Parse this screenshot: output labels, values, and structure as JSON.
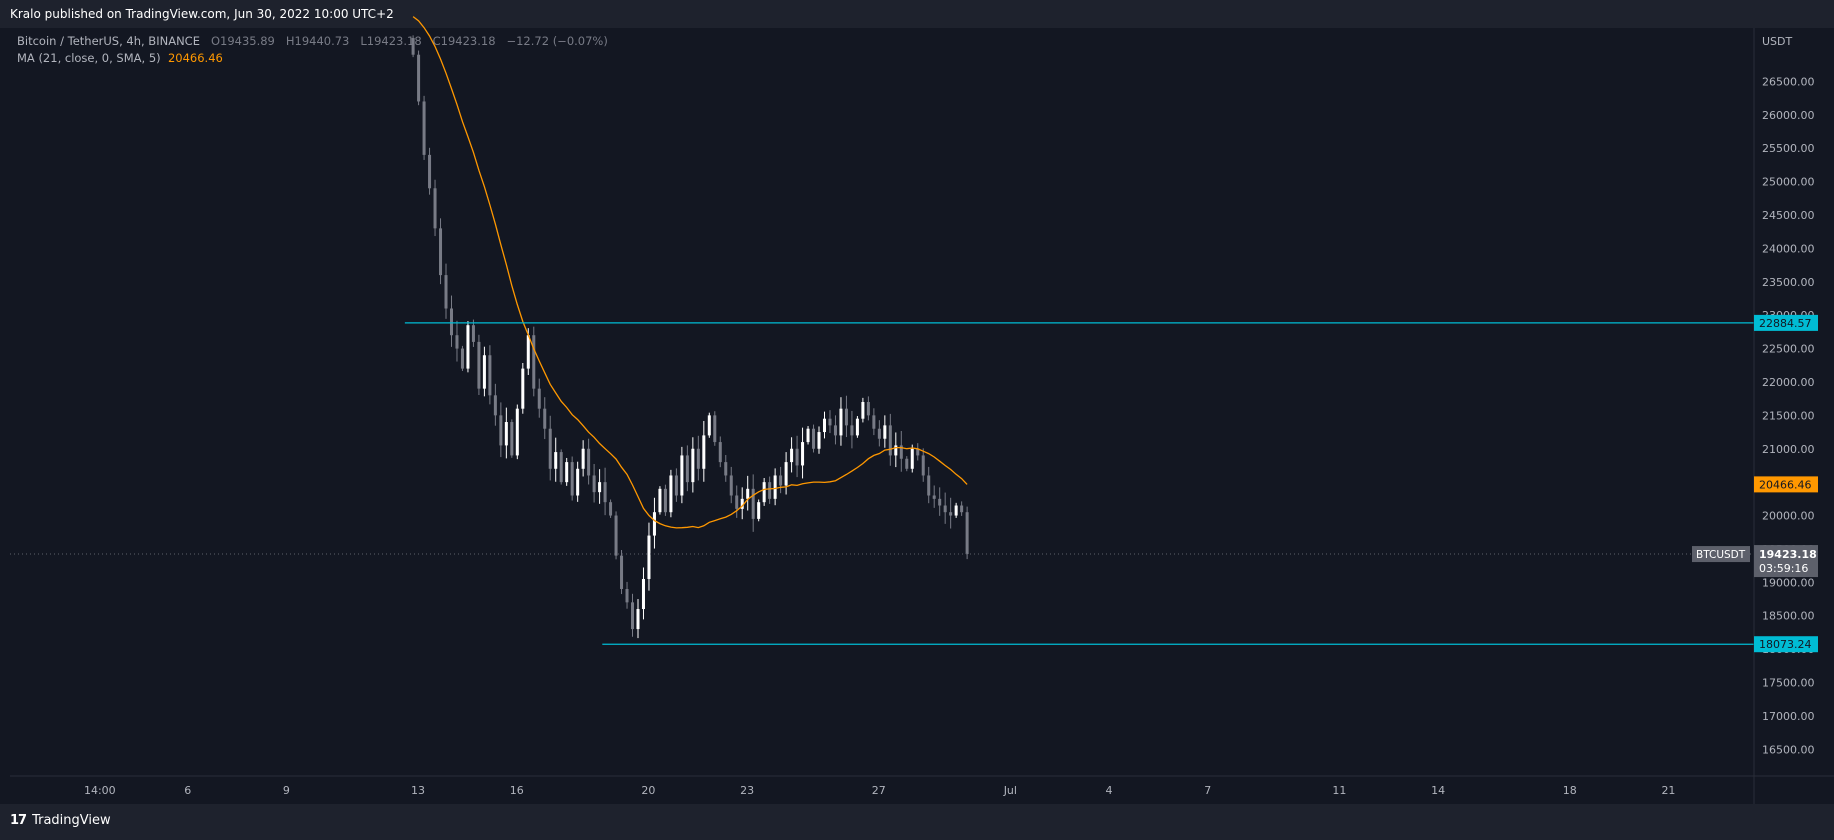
{
  "header": {
    "published_text": "Kralo published on TradingView.com, Jun 30, 2022 10:00 UTC+2"
  },
  "legend": {
    "symbol": "Bitcoin / TetherUS, 4h, BINANCE",
    "o_label": "O",
    "o_value": "19435.89",
    "h_label": "H",
    "h_value": "19440.73",
    "l_label": "L",
    "l_value": "19423.18",
    "c_label": "C",
    "c_value": "19423.18",
    "change": "−12.72 (−0.07%)",
    "ma_label": "MA (21, close, 0, SMA, 5)",
    "ma_value": "20466.46"
  },
  "footer": {
    "brand": "TradingView",
    "logo": "17"
  },
  "chart_data": {
    "type": "candlestick",
    "currency": "USDT",
    "ylim": [
      16100,
      27300
    ],
    "y_ticks": [
      16500,
      17000,
      17500,
      18000,
      18500,
      19000,
      19500,
      20000,
      20500,
      21000,
      21500,
      22000,
      22500,
      23000,
      23500,
      24000,
      24500,
      25000,
      25500,
      26000,
      26500
    ],
    "y_tick_labels": [
      "16500.00",
      "17000.00",
      "17500.00",
      "18000.00",
      "18500.00",
      "19000.00",
      "19500.00",
      "20000.00",
      "20500.00",
      "21000.00",
      "21500.00",
      "22000.00",
      "22500.00",
      "23000.00",
      "23500.00",
      "24000.00",
      "24500.00",
      "25000.00",
      "25500.00",
      "26000.00",
      "26500.00"
    ],
    "x_range_days": [
      -29.4,
      23.6
    ],
    "x_ticks": [
      {
        "day": -26.67,
        "label": "14:00"
      },
      {
        "day": -24,
        "label": "6"
      },
      {
        "day": -21,
        "label": "9"
      },
      {
        "day": -17,
        "label": "13"
      },
      {
        "day": -14,
        "label": "16"
      },
      {
        "day": -10,
        "label": "20"
      },
      {
        "day": -7,
        "label": "23"
      },
      {
        "day": -3,
        "label": "27"
      },
      {
        "day": 1,
        "label": "Jul"
      },
      {
        "day": 4,
        "label": "4"
      },
      {
        "day": 7,
        "label": "7"
      },
      {
        "day": 11,
        "label": "11"
      },
      {
        "day": 14,
        "label": "14"
      },
      {
        "day": 18,
        "label": "18"
      },
      {
        "day": 21,
        "label": "21"
      }
    ],
    "candle_step_days": 0.1667,
    "candle_start_day": -17.15,
    "closes": [
      26900,
      26200,
      25400,
      24900,
      24300,
      23600,
      23100,
      22700,
      22500,
      22200,
      22850,
      22600,
      21900,
      22400,
      21800,
      21500,
      21050,
      21400,
      20900,
      21600,
      22200,
      22700,
      21900,
      21600,
      21300,
      20700,
      20950,
      20500,
      20800,
      20300,
      20700,
      21000,
      20600,
      20350,
      20500,
      20200,
      20000,
      19400,
      18900,
      18700,
      18300,
      18600,
      19050,
      19700,
      20050,
      20400,
      20050,
      20600,
      20300,
      20900,
      20500,
      21000,
      20700,
      21200,
      21500,
      21100,
      20800,
      20600,
      20300,
      20100,
      20250,
      20400,
      19950,
      20200,
      20500,
      20250,
      20600,
      20450,
      20800,
      21000,
      20750,
      21100,
      21300,
      21000,
      21250,
      21450,
      21350,
      21200,
      21600,
      21350,
      21200,
      21450,
      21700,
      21500,
      21300,
      21150,
      21350,
      20900,
      21050,
      20850,
      20700,
      21000,
      20900,
      20600,
      20300,
      20250,
      20150,
      20050,
      20000,
      20150,
      20050,
      19423.18
    ],
    "ma_label": "MA (21, close, 0, SMA, 5)",
    "ma_last": 20466.46,
    "last_price": 19423.18,
    "last_price_label": "19423.18",
    "countdown": "03:59:16",
    "symbol_tag": "BTCUSDT",
    "horizontal_lines": [
      {
        "price": 22884.57,
        "label": "22884.57",
        "start_day": -17.4
      },
      {
        "price": 18073.24,
        "label": "18073.24",
        "start_day": -11.4
      }
    ],
    "colors": {
      "background": "#131722",
      "candle": "#ffffff",
      "candle_down": "#787b86",
      "ma": "#ff9800",
      "hline": "#00bcd4",
      "axis_text": "#b2b5be",
      "last_price_tag": "#5d606b"
    }
  }
}
